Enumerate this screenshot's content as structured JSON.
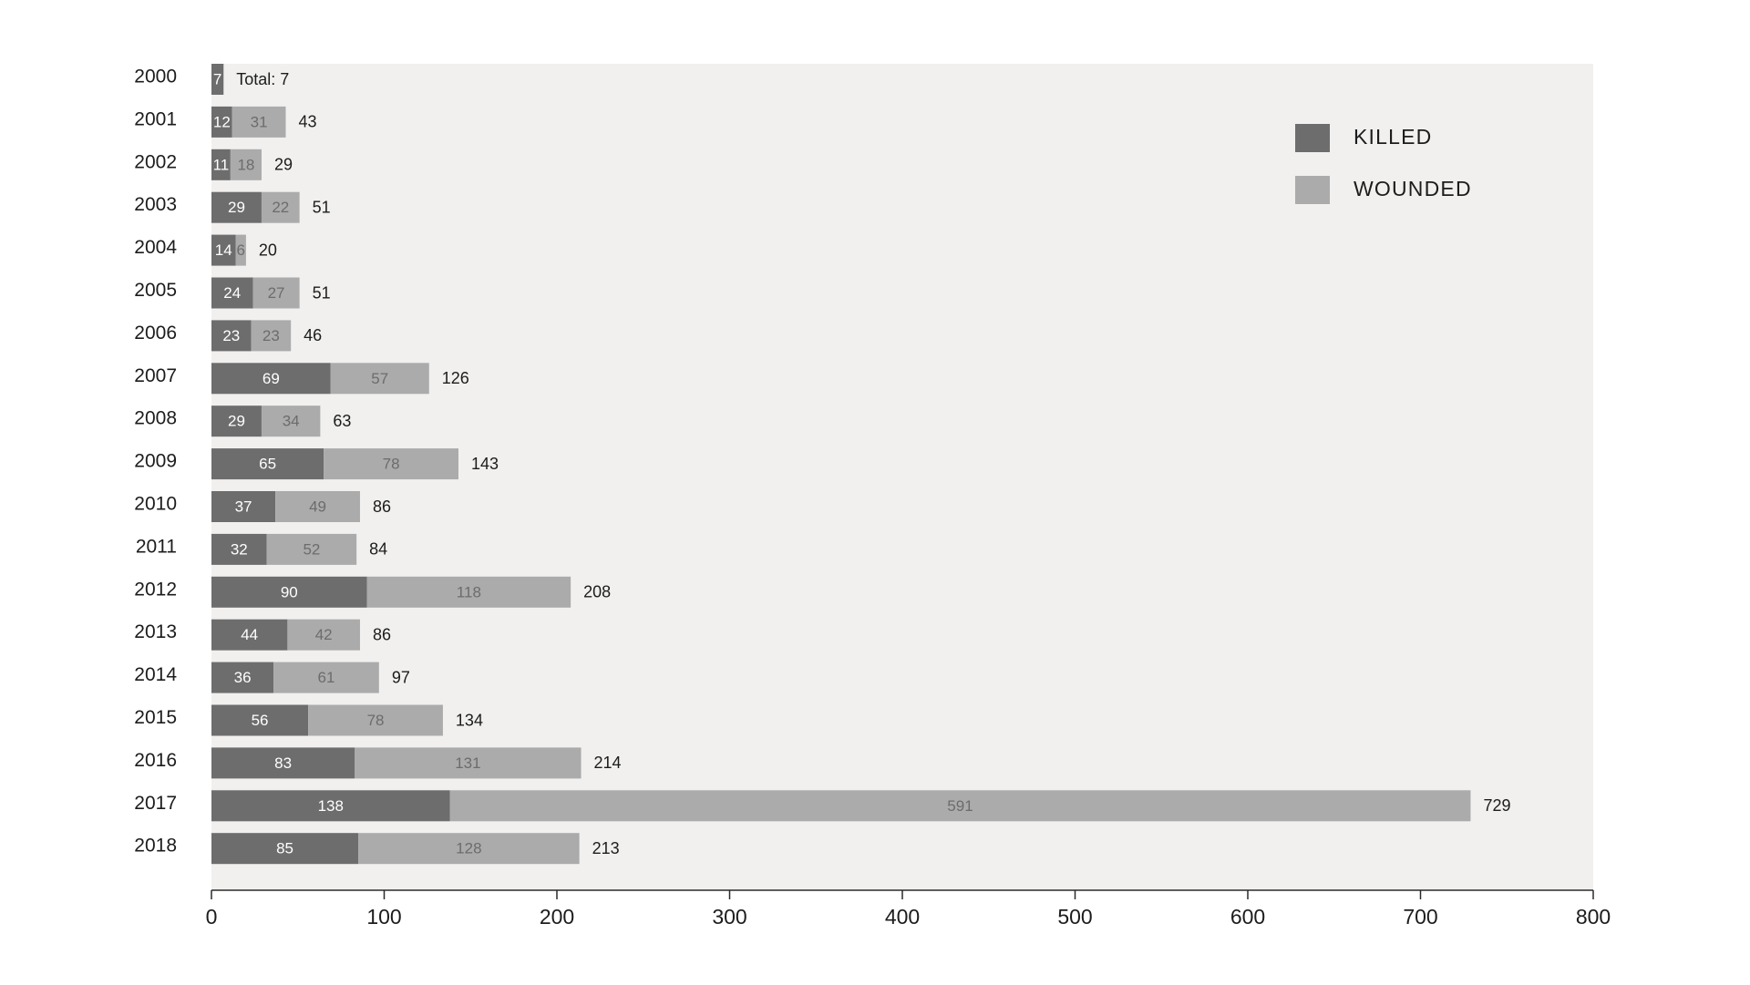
{
  "chart_data": {
    "type": "bar",
    "orientation": "horizontal",
    "stacked": true,
    "categories": [
      "2000",
      "2001",
      "2002",
      "2003",
      "2004",
      "2005",
      "2006",
      "2007",
      "2008",
      "2009",
      "2010",
      "2011",
      "2012",
      "2013",
      "2014",
      "2015",
      "2016",
      "2017",
      "2018"
    ],
    "series": [
      {
        "name": "KILLED",
        "color": "#6d6d6d",
        "values": [
          7,
          12,
          11,
          29,
          14,
          24,
          23,
          69,
          29,
          65,
          37,
          32,
          90,
          44,
          36,
          56,
          83,
          138,
          85
        ],
        "labels": [
          "7",
          "12",
          "11",
          "29",
          "14",
          "24",
          "23",
          "69",
          "29",
          "65",
          "37",
          "32",
          "90",
          "44",
          "36",
          "56",
          "83",
          "138",
          "85"
        ]
      },
      {
        "name": "WOUNDED",
        "color": "#ababab",
        "values": [
          0,
          31,
          18,
          22,
          6,
          27,
          23,
          57,
          34,
          78,
          49,
          52,
          118,
          42,
          61,
          78,
          131,
          591,
          128
        ],
        "labels": [
          "",
          "31",
          "18",
          "22",
          "6",
          "27",
          "23",
          "57",
          "34",
          "78",
          "49",
          "52",
          "118",
          "42",
          "61",
          "78",
          "131",
          "591",
          "128"
        ]
      }
    ],
    "totals": [
      "Total: 7",
      "43",
      "29",
      "51",
      "20",
      "51",
      "46",
      "126",
      "63",
      "143",
      "86",
      "84",
      "208",
      "86",
      "97",
      "134",
      "214",
      "729",
      "213"
    ],
    "xlim": [
      0,
      800
    ],
    "xticks": [
      "0",
      "100",
      "200",
      "300",
      "400",
      "500",
      "600",
      "700",
      "800"
    ],
    "grid": false,
    "plot_background": "#f1f0ef",
    "legend_position": "top-right",
    "title": "",
    "xlabel": "",
    "ylabel": ""
  }
}
